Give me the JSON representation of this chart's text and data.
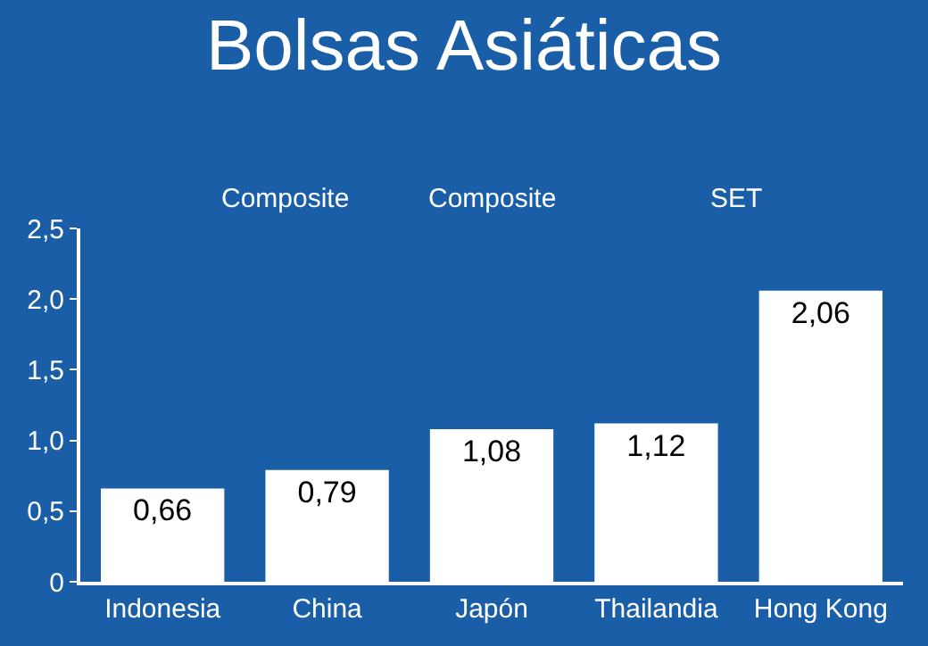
{
  "chart_data": {
    "type": "bar",
    "title": "Bolsas Asiáticas",
    "categories": [
      "Indonesia",
      "China",
      "Japón",
      "Thailandia",
      "Hong Kong"
    ],
    "values": [
      0.66,
      0.79,
      1.08,
      1.12,
      2.06
    ],
    "value_labels": [
      "0,66",
      "0,79",
      "1,08",
      "1,12",
      "2,06"
    ],
    "color": "#ffffff",
    "ylim": [
      0,
      2.5
    ],
    "yticks": [
      0,
      {
        "value": 0.5,
        "label": "0,5"
      },
      {
        "value": 1.0,
        "label": "1,0"
      },
      {
        "value": 1.5,
        "label": "1,5"
      },
      {
        "value": 2.0,
        "label": "2,0"
      },
      {
        "value": 2.5,
        "label": "2,5"
      }
    ],
    "grid": false,
    "annotations": [
      "Composite",
      "Composite",
      "SET"
    ]
  }
}
